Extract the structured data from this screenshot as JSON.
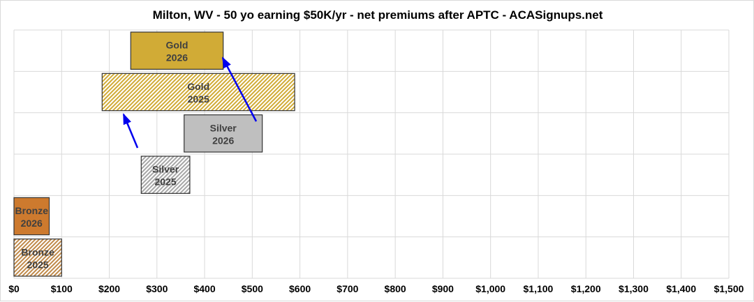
{
  "chart_data": {
    "type": "bar",
    "orientation": "horizontal-floating",
    "title": "Milton, WV - 50 yo earning $50K/yr - net premiums after APTC - ACASignups.net",
    "xlabel": "",
    "ylabel": "",
    "xlim": [
      0,
      1500
    ],
    "x_ticks": [
      "$0",
      "$100",
      "$200",
      "$300",
      "$400",
      "$500",
      "$600",
      "$700",
      "$800",
      "$900",
      "$1,000",
      "$1,100",
      "$1,200",
      "$1,300",
      "$1,400",
      "$1,500"
    ],
    "grid": true,
    "bars": [
      {
        "label": [
          "Gold",
          "2026"
        ],
        "low": 245,
        "high": 439,
        "color": "#d1ab36",
        "pattern": "solid"
      },
      {
        "label": [
          "Gold",
          "2025"
        ],
        "low": 185,
        "high": 589,
        "color": "#d1ab36",
        "pattern": "hatched"
      },
      {
        "label": [
          "Silver",
          "2026"
        ],
        "low": 357,
        "high": 521,
        "color": "#bfbfbf",
        "pattern": "solid"
      },
      {
        "label": [
          "Silver",
          "2025"
        ],
        "low": 267,
        "high": 369,
        "color": "#a6a6a6",
        "pattern": "hatched"
      },
      {
        "label": [
          "Bronze",
          "2026"
        ],
        "low": 0,
        "high": 74,
        "color": "#cd7a2e",
        "pattern": "solid"
      },
      {
        "label": [
          "Bronze",
          "2025"
        ],
        "low": 0,
        "high": 100,
        "color": "#c08a4a",
        "pattern": "hatched"
      }
    ],
    "arrow_color": "#0000ee"
  }
}
